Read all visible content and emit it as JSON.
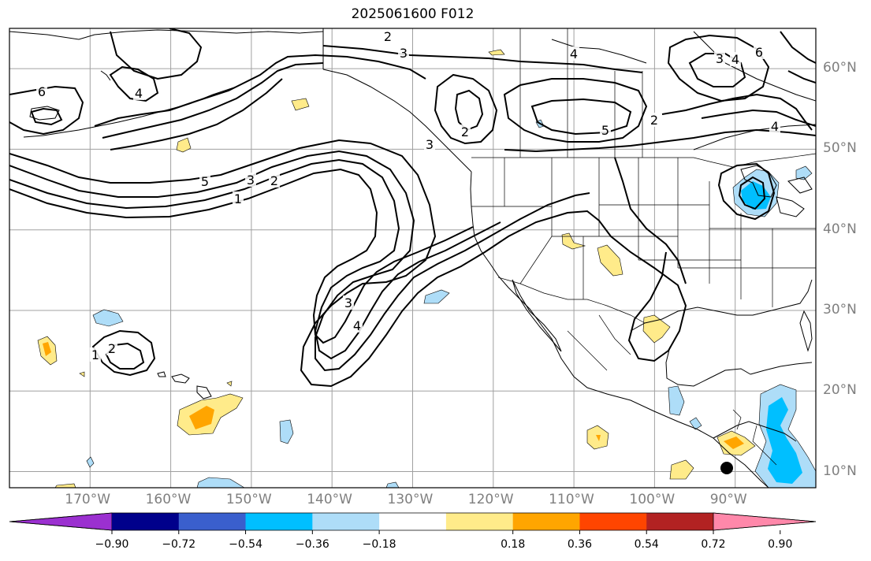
{
  "title": "2025061600 F012",
  "map": {
    "lon_range": [
      -180,
      -80
    ],
    "lat_range": [
      8,
      65
    ],
    "lat_labels": [
      "60°N",
      "50°N",
      "40°N",
      "30°N",
      "20°N",
      "10°N"
    ],
    "lon_labels": [
      "170°W",
      "160°W",
      "150°W",
      "140°W",
      "130°W",
      "120°W",
      "110°W",
      "100°W",
      "90°W"
    ],
    "contour_color": "#000000",
    "gridline_color": "#a0a0a0",
    "contour_labels": [
      "2",
      "3",
      "4",
      "6",
      "3",
      "4",
      "6",
      "2",
      "3",
      "4",
      "5",
      "2",
      "5",
      "4",
      "3",
      "2",
      "1",
      "3",
      "4",
      "2",
      "1"
    ]
  },
  "colorbar": {
    "colors": [
      "#9b30d0",
      "#00008b",
      "#3a5fcd",
      "#00bfff",
      "#aeddf8",
      "#ffffff",
      "#ffeb8a",
      "#ffa500",
      "#ff4500",
      "#b22222",
      "#ff88aa"
    ],
    "ticks": [
      "−0.90",
      "−0.72",
      "−0.54",
      "−0.36",
      "−0.18",
      "0.18",
      "0.36",
      "0.54",
      "0.72",
      "0.90"
    ]
  }
}
